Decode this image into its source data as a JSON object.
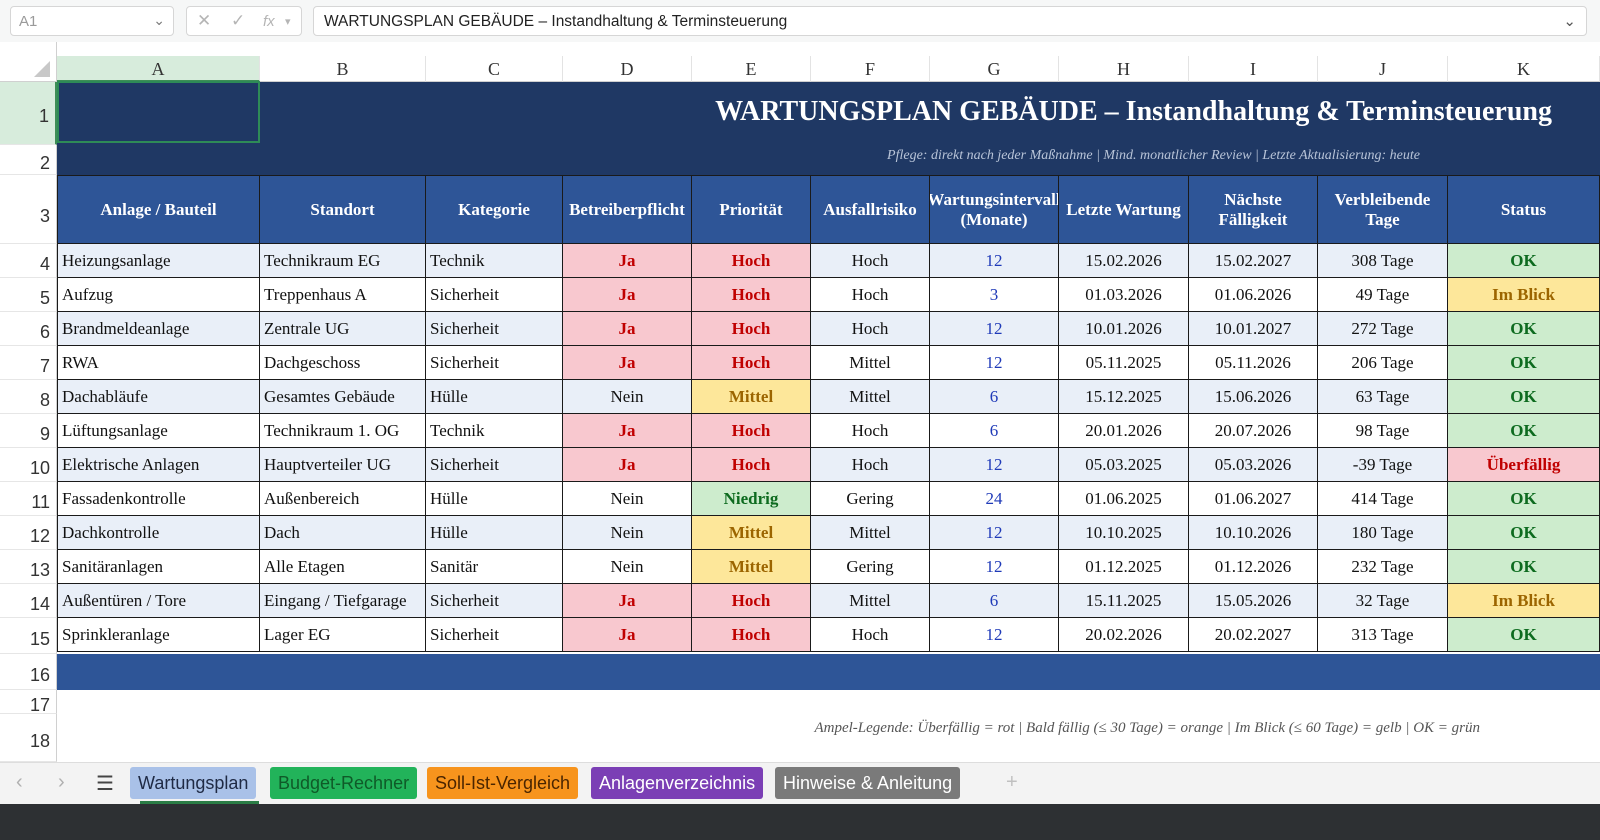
{
  "formula_bar": {
    "name_box": "A1",
    "cancel_icon": "✕",
    "confirm_icon": "✓",
    "fx_label": "fx",
    "formula": "WARTUNGSPLAN GEBÄUDE – Instandhaltung & Terminsteuerung"
  },
  "columns": [
    "A",
    "B",
    "C",
    "D",
    "E",
    "F",
    "G",
    "H",
    "I",
    "J",
    "K"
  ],
  "rows": [
    "1",
    "2",
    "3",
    "4",
    "5",
    "6",
    "7",
    "8",
    "9",
    "10",
    "11",
    "12",
    "13",
    "14",
    "15",
    "16",
    "17",
    "18"
  ],
  "title": "WARTUNGSPLAN GEBÄUDE – Instandhaltung & Terminsteuerung",
  "subtitle": "Pflege: direkt nach jeder Maßnahme | Mind. monatlicher Review | Letzte Aktualisierung: heute",
  "headers": [
    "Anlage / Bauteil",
    "Standort",
    "Kategorie",
    "Betreiberpflicht",
    "Priorität",
    "Ausfallrisiko",
    "Wartungsintervall (Monate)",
    "Letzte Wartung",
    "Nächste Fälligkeit",
    "Verbleibende Tage",
    "Status"
  ],
  "table": [
    [
      "Heizungsanlage",
      "Technikraum EG",
      "Technik",
      "Ja",
      "Hoch",
      "Hoch",
      "12",
      "15.02.2026",
      "15.02.2027",
      "308 Tage",
      "OK"
    ],
    [
      "Aufzug",
      "Treppenhaus A",
      "Sicherheit",
      "Ja",
      "Hoch",
      "Hoch",
      "3",
      "01.03.2026",
      "01.06.2026",
      "49 Tage",
      "Im Blick"
    ],
    [
      "Brandmeldeanlage",
      "Zentrale UG",
      "Sicherheit",
      "Ja",
      "Hoch",
      "Hoch",
      "12",
      "10.01.2026",
      "10.01.2027",
      "272 Tage",
      "OK"
    ],
    [
      "RWA",
      "Dachgeschoss",
      "Sicherheit",
      "Ja",
      "Hoch",
      "Mittel",
      "12",
      "05.11.2025",
      "05.11.2026",
      "206 Tage",
      "OK"
    ],
    [
      "Dachabläufe",
      "Gesamtes Gebäude",
      "Hülle",
      "Nein",
      "Mittel",
      "Mittel",
      "6",
      "15.12.2025",
      "15.06.2026",
      "63 Tage",
      "OK"
    ],
    [
      "Lüftungsanlage",
      "Technikraum 1. OG",
      "Technik",
      "Ja",
      "Hoch",
      "Hoch",
      "6",
      "20.01.2026",
      "20.07.2026",
      "98 Tage",
      "OK"
    ],
    [
      "Elektrische Anlagen",
      "Hauptverteiler UG",
      "Sicherheit",
      "Ja",
      "Hoch",
      "Hoch",
      "12",
      "05.03.2025",
      "05.03.2026",
      "-39 Tage",
      "Überfällig"
    ],
    [
      "Fassadenkontrolle",
      "Außenbereich",
      "Hülle",
      "Nein",
      "Niedrig",
      "Gering",
      "24",
      "01.06.2025",
      "01.06.2027",
      "414 Tage",
      "OK"
    ],
    [
      "Dachkontrolle",
      "Dach",
      "Hülle",
      "Nein",
      "Mittel",
      "Mittel",
      "12",
      "10.10.2025",
      "10.10.2026",
      "180 Tage",
      "OK"
    ],
    [
      "Sanitäranlagen",
      "Alle Etagen",
      "Sanitär",
      "Nein",
      "Mittel",
      "Gering",
      "12",
      "01.12.2025",
      "01.12.2026",
      "232 Tage",
      "OK"
    ],
    [
      "Außentüren / Tore",
      "Eingang / Tiefgarage",
      "Sicherheit",
      "Ja",
      "Hoch",
      "Mittel",
      "6",
      "15.11.2025",
      "15.05.2026",
      "32 Tage",
      "Im Blick"
    ],
    [
      "Sprinkleranlage",
      "Lager EG",
      "Sicherheit",
      "Ja",
      "Hoch",
      "Hoch",
      "12",
      "20.02.2026",
      "20.02.2027",
      "313 Tage",
      "OK"
    ]
  ],
  "legend": "Ampel-Legende:  Überfällig = rot  |  Bald fällig (≤ 30 Tage) = orange  |  Im Blick (≤ 60 Tage) = gelb  |  OK = grün",
  "tabs": [
    {
      "label": "Wartungsplan",
      "bg": "#a9c1e8",
      "fg": "#1f2a44"
    },
    {
      "label": "Budget-Rechner",
      "bg": "#22b35a",
      "fg": "#0f5a28"
    },
    {
      "label": "Soll-Ist-Vergleich",
      "bg": "#f7941d",
      "fg": "#4a2500"
    },
    {
      "label": "Anlagenverzeichnis",
      "bg": "#7b3fb5",
      "fg": "#ffffff"
    },
    {
      "label": "Hinweise & Anleitung",
      "bg": "#7a7a7a",
      "fg": "#ffffff"
    }
  ],
  "nav": {
    "prev": "‹",
    "next": "›",
    "menu": "☰",
    "add": "+"
  },
  "colors": {
    "navy": "#1f3864",
    "header_blue": "#2e5597",
    "row_alt": "#e9eff8",
    "pink": "#f8c8cf",
    "red_text": "#c00000",
    "yellow": "#fde79a",
    "olive_text": "#9c6500",
    "green": "#cdeccd",
    "green_text": "#0d6b1f",
    "blue_text": "#1f3ab8"
  }
}
